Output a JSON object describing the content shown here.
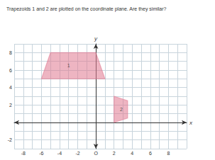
{
  "chart_data": {
    "type": "polygon",
    "title": "Trapezoids 1 and 2 are plotted on the coordinate plane. Are they similar?",
    "x_label": "x",
    "y_label": "y",
    "xlim": [
      -9,
      10
    ],
    "ylim": [
      -3,
      9
    ],
    "xticks": [
      -8,
      -6,
      -4,
      -2,
      {
        "value": 0,
        "label": "O"
      },
      2,
      4,
      6,
      8
    ],
    "yticks": [
      -2,
      2,
      4,
      6,
      8
    ],
    "grid": true,
    "color": "#e07890",
    "series": [
      {
        "name": "1",
        "vertices": [
          [
            -6,
            5
          ],
          [
            -5,
            8
          ],
          [
            0,
            8
          ],
          [
            1,
            5
          ]
        ],
        "label_at": [
          -3,
          6.5
        ]
      },
      {
        "name": "2",
        "vertices": [
          [
            2,
            0
          ],
          [
            2,
            3
          ],
          [
            3.5,
            2.5
          ],
          [
            3.5,
            0.5
          ]
        ],
        "label_at": [
          2.8,
          1.5
        ]
      }
    ]
  }
}
